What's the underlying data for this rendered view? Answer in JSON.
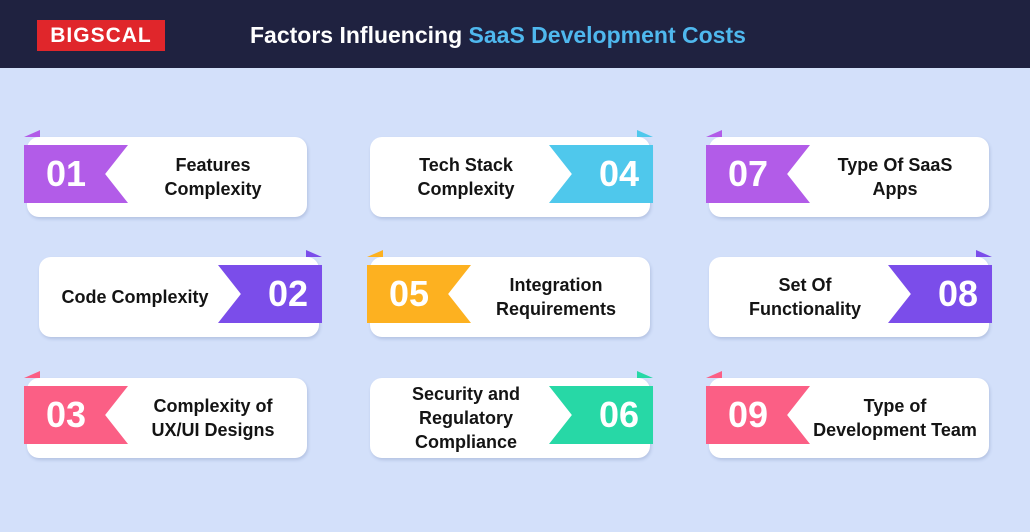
{
  "header": {
    "logo_text": "BIGSCAL",
    "title_part1": "Factors Influencing ",
    "title_part2": "SaaS Development Costs"
  },
  "colors": {
    "header_bg": "#1f2240",
    "background": "#d3e0fa",
    "logo_red": "#e0262b",
    "title_highlight": "#4fb8ee",
    "purple_light": "#b25ce8",
    "purple": "#7b4dea",
    "pink": "#fb5f85",
    "cyan": "#4fc8ec",
    "orange": "#fdb120",
    "green": "#27d8a6"
  },
  "items": [
    {
      "number": "01",
      "label_lines": [
        "Features Complexity"
      ],
      "color": "#b25ce8"
    },
    {
      "number": "02",
      "label_lines": [
        "Code Complexity"
      ],
      "color": "#7b4dea"
    },
    {
      "number": "03",
      "label_lines": [
        "Complexity of",
        "UX/UI Designs"
      ],
      "color": "#fb5f85"
    },
    {
      "number": "04",
      "label_lines": [
        "Tech Stack",
        "Complexity"
      ],
      "color": "#4fc8ec"
    },
    {
      "number": "05",
      "label_lines": [
        "Integration",
        "Requirements"
      ],
      "color": "#fdb120"
    },
    {
      "number": "06",
      "label_lines": [
        "Security and",
        "Regulatory",
        "Compliance"
      ],
      "color": "#27d8a6"
    },
    {
      "number": "07",
      "label_lines": [
        "Type Of SaaS",
        "Apps"
      ],
      "color": "#b25ce8"
    },
    {
      "number": "08",
      "label_lines": [
        "Set Of",
        "Functionality"
      ],
      "color": "#7b4dea"
    },
    {
      "number": "09",
      "label_lines": [
        "Type of",
        "Development Team"
      ],
      "color": "#fb5f85"
    }
  ]
}
